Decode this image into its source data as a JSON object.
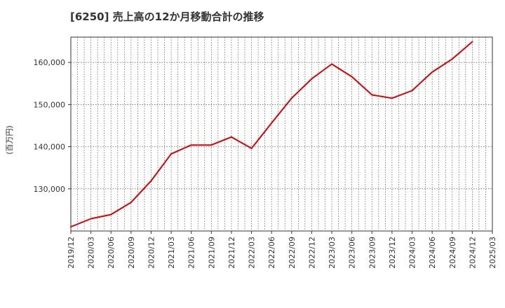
{
  "chart_data": {
    "type": "line",
    "title": "[6250]  売上高の12か月移動合計の推移",
    "ylabel": "(百万円)",
    "xlabel": "",
    "categories": [
      "2019/12",
      "2020/03",
      "2020/06",
      "2020/09",
      "2020/12",
      "2021/03",
      "2021/06",
      "2021/09",
      "2021/12",
      "2022/03",
      "2022/06",
      "2022/09",
      "2022/12",
      "2023/03",
      "2023/06",
      "2023/09",
      "2023/12",
      "2024/03",
      "2024/06",
      "2024/09",
      "2024/12",
      "2025/03"
    ],
    "series": [
      {
        "name": "売上高の12か月移動合計",
        "color": "#dd0000",
        "values": [
          121000,
          122900,
          123900,
          126800,
          131900,
          138300,
          140400,
          140400,
          142300,
          139600,
          145600,
          151500,
          156100,
          159600,
          156600,
          152300,
          151500,
          153300,
          157700,
          160800,
          164900,
          null
        ]
      }
    ],
    "ylim": [
      120000,
      166000
    ],
    "yticks": [
      130000,
      140000,
      150000,
      160000
    ],
    "ytick_labels": [
      "130,000",
      "140,000",
      "150,000",
      "160,000"
    ],
    "grid": true
  }
}
